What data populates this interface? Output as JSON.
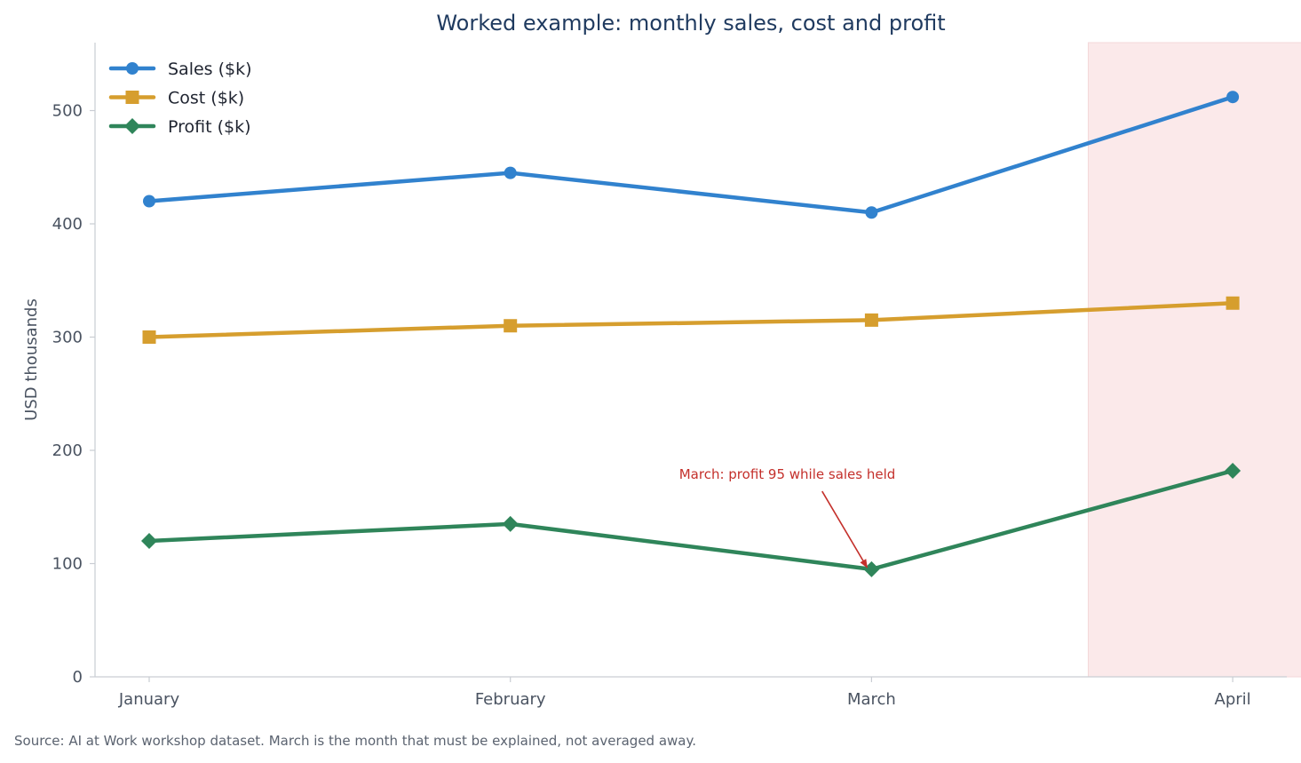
{
  "chart_data": {
    "type": "line",
    "title": "Worked example: monthly sales, cost and profit",
    "ylabel": "USD thousands",
    "xlabel": "",
    "categories": [
      "January",
      "February",
      "March",
      "April"
    ],
    "ylim": [
      0,
      560
    ],
    "yticks": [
      0,
      100,
      200,
      300,
      400,
      500
    ],
    "grid": false,
    "legend_position": "top-left",
    "series": [
      {
        "name": "Sales ($k)",
        "values": [
          420,
          445,
          410,
          512
        ],
        "color": "#3182ce",
        "marker": "circle"
      },
      {
        "name": "Cost ($k)",
        "values": [
          300,
          310,
          315,
          330
        ],
        "color": "#d69e2e",
        "marker": "square"
      },
      {
        "name": "Profit ($k)",
        "values": [
          120,
          135,
          95,
          182
        ],
        "color": "#2f855a",
        "marker": "diamond"
      }
    ],
    "highlight": {
      "from": 2.6,
      "to": 3.4,
      "color": "#fbe9ea"
    },
    "annotation": {
      "text": "March: profit 95 while sales held",
      "point": {
        "category": "March",
        "value": 95
      },
      "text_anchor": {
        "category": 2.05,
        "value": 178
      },
      "color": "#c4302b"
    },
    "source_note": "Source: AI at Work workshop dataset. March is the month that must be explained, not averaged away."
  }
}
